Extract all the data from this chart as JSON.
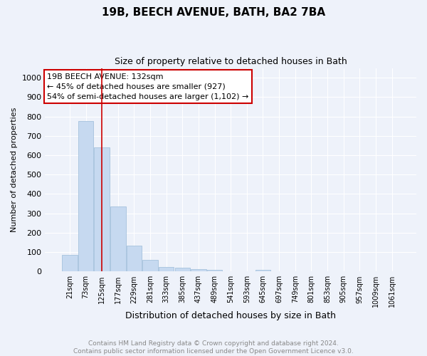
{
  "title": "19B, BEECH AVENUE, BATH, BA2 7BA",
  "subtitle": "Size of property relative to detached houses in Bath",
  "xlabel": "Distribution of detached houses by size in Bath",
  "ylabel": "Number of detached properties",
  "bar_color": "#c6d9f0",
  "bar_edge_color": "#9bbad8",
  "background_color": "#eef2fa",
  "grid_color": "#ffffff",
  "vline_color": "#cc0000",
  "vline_x": 2.0,
  "annotation_text": "19B BEECH AVENUE: 132sqm\n← 45% of detached houses are smaller (927)\n54% of semi-detached houses are larger (1,102) →",
  "annotation_box_color": "#cc0000",
  "categories": [
    "21sqm",
    "73sqm",
    "125sqm",
    "177sqm",
    "229sqm",
    "281sqm",
    "333sqm",
    "385sqm",
    "437sqm",
    "489sqm",
    "541sqm",
    "593sqm",
    "645sqm",
    "697sqm",
    "749sqm",
    "801sqm",
    "853sqm",
    "905sqm",
    "957sqm",
    "1009sqm",
    "1061sqm"
  ],
  "values": [
    85,
    775,
    640,
    335,
    135,
    60,
    25,
    20,
    12,
    7,
    0,
    0,
    10,
    0,
    0,
    0,
    0,
    0,
    0,
    0,
    0
  ],
  "ylim": [
    0,
    1050
  ],
  "yticks": [
    0,
    100,
    200,
    300,
    400,
    500,
    600,
    700,
    800,
    900,
    1000
  ],
  "footer": "Contains HM Land Registry data © Crown copyright and database right 2024.\nContains public sector information licensed under the Open Government Licence v3.0.",
  "footer_color": "#888888",
  "title_fontsize": 11,
  "subtitle_fontsize": 9,
  "ylabel_fontsize": 8,
  "xlabel_fontsize": 9,
  "tick_fontsize": 8,
  "xtick_fontsize": 7,
  "footer_fontsize": 6.5,
  "annotation_fontsize": 8
}
